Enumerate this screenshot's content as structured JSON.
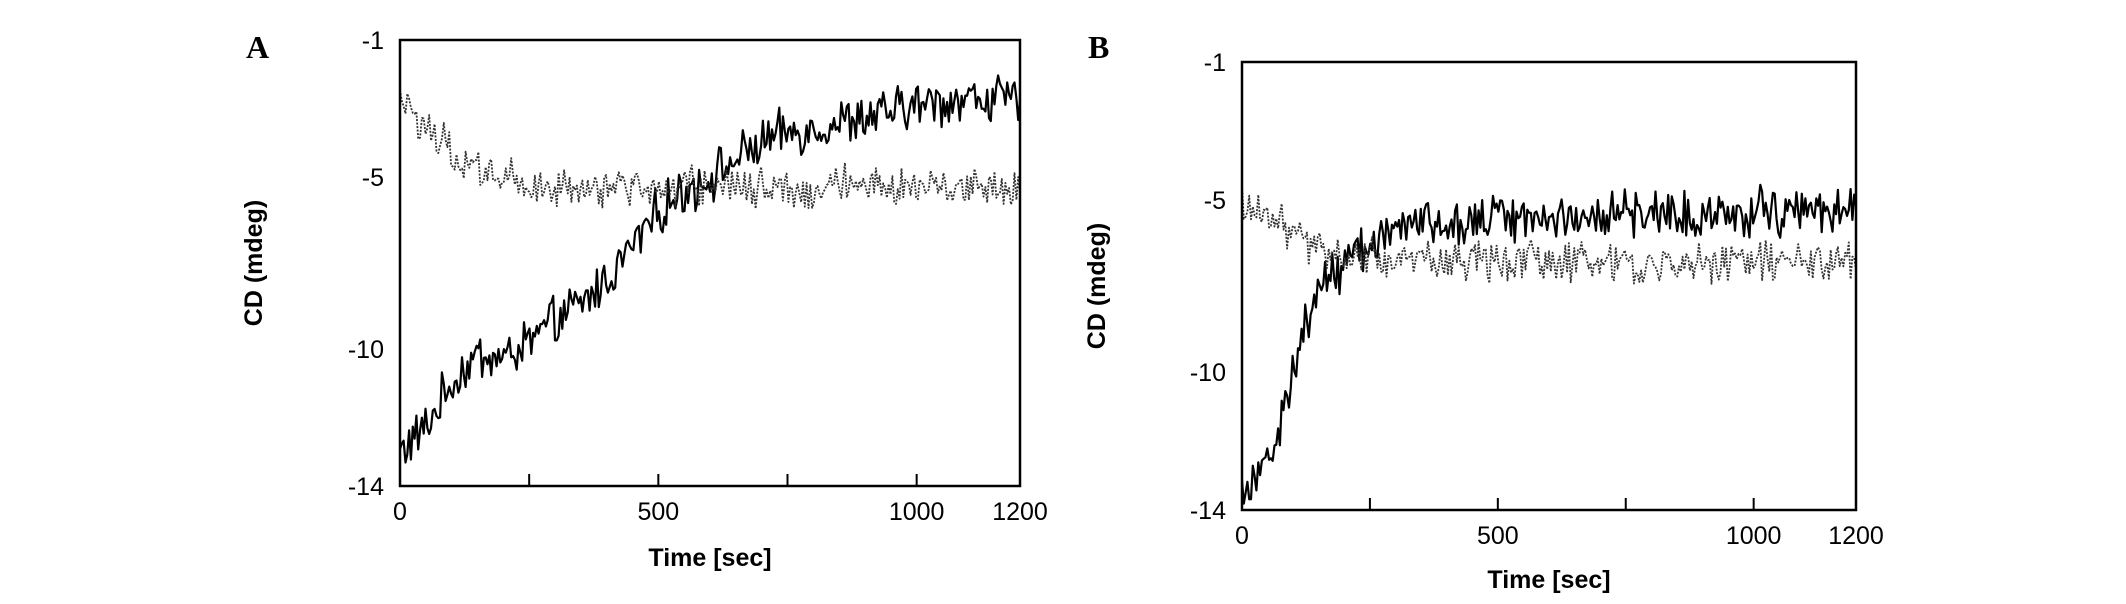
{
  "chart_data": [
    {
      "type": "line",
      "panel_label": "A",
      "xlabel": "Time [sec]",
      "ylabel": "CD (mdeg)",
      "xlim": [
        0,
        1200
      ],
      "ylim": [
        -14,
        -1
      ],
      "x_ticks": [
        0,
        500,
        1000,
        1200
      ],
      "x_minor_ticks": [
        250,
        750
      ],
      "y_ticks": [
        -1,
        -5,
        -10,
        -14
      ],
      "grid": false,
      "series": [
        {
          "style": "solid",
          "color": "#000000",
          "x": [
            0,
            50,
            100,
            150,
            200,
            250,
            300,
            350,
            400,
            450,
            500,
            550,
            600,
            650,
            700,
            750,
            800,
            850,
            900,
            950,
            1000,
            1050,
            1100,
            1150,
            1200
          ],
          "values": [
            -13.0,
            -12.3,
            -11.0,
            -10.2,
            -10.3,
            -9.8,
            -9.2,
            -8.7,
            -8.0,
            -7.0,
            -6.0,
            -5.4,
            -5.0,
            -4.5,
            -4.0,
            -3.7,
            -3.6,
            -3.4,
            -3.3,
            -3.1,
            -2.9,
            -2.8,
            -2.7,
            -2.7,
            -2.8
          ],
          "noise": 0.55
        },
        {
          "style": "dotted",
          "color": "#333333",
          "x": [
            0,
            50,
            100,
            150,
            200,
            250,
            300,
            350,
            400,
            450,
            500,
            550,
            600,
            650,
            700,
            750,
            800,
            850,
            900,
            950,
            1000,
            1050,
            1100,
            1150,
            1200
          ],
          "values": [
            -2.8,
            -3.6,
            -4.2,
            -4.8,
            -5.0,
            -5.2,
            -5.4,
            -5.4,
            -5.3,
            -5.3,
            -5.4,
            -5.3,
            -5.2,
            -5.3,
            -5.3,
            -5.4,
            -5.3,
            -5.2,
            -5.3,
            -5.3,
            -5.2,
            -5.3,
            -5.2,
            -5.3,
            -5.2
          ],
          "noise": 0.45
        }
      ]
    },
    {
      "type": "line",
      "panel_label": "B",
      "xlabel": "Time [sec]",
      "ylabel": "CD (mdeg)",
      "xlim": [
        0,
        1200
      ],
      "ylim": [
        -14,
        -1
      ],
      "x_ticks": [
        0,
        500,
        1000,
        1200
      ],
      "x_minor_ticks": [
        250,
        750
      ],
      "y_ticks": [
        -1,
        -5,
        -10,
        -14
      ],
      "grid": false,
      "series": [
        {
          "style": "solid",
          "color": "#000000",
          "x": [
            0,
            25,
            50,
            75,
            100,
            125,
            150,
            200,
            250,
            300,
            350,
            400,
            500,
            600,
            700,
            800,
            900,
            1000,
            1100,
            1200
          ],
          "values": [
            -13.3,
            -13.0,
            -12.6,
            -11.5,
            -10.0,
            -8.6,
            -7.6,
            -6.8,
            -6.2,
            -5.9,
            -5.7,
            -5.6,
            -5.5,
            -5.5,
            -5.4,
            -5.4,
            -5.4,
            -5.3,
            -5.3,
            -5.3
          ],
          "noise": 0.55
        },
        {
          "style": "dotted",
          "color": "#333333",
          "x": [
            0,
            50,
            100,
            150,
            200,
            250,
            300,
            400,
            500,
            600,
            700,
            800,
            900,
            1000,
            1100,
            1200
          ],
          "values": [
            -5.0,
            -5.4,
            -6.0,
            -6.4,
            -6.6,
            -6.7,
            -6.8,
            -6.8,
            -6.8,
            -6.8,
            -6.8,
            -6.9,
            -6.8,
            -6.8,
            -6.8,
            -6.8
          ],
          "noise": 0.45
        }
      ]
    }
  ]
}
